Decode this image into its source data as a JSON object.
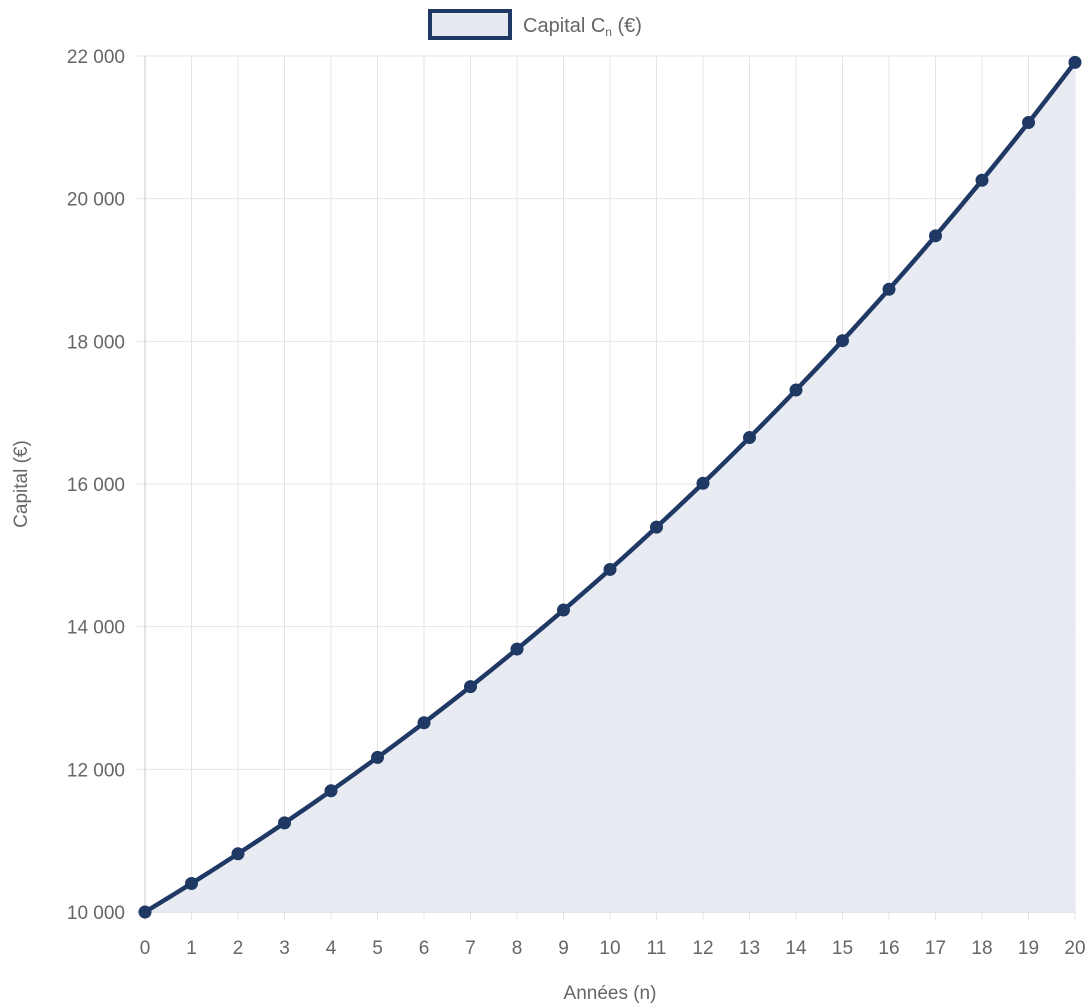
{
  "chart_data": {
    "type": "line",
    "legend_position": "top",
    "grid": true,
    "filled_area": true,
    "xlabel": "Années (n)",
    "ylabel": "Capital (€)",
    "x": [
      0,
      1,
      2,
      3,
      4,
      5,
      6,
      7,
      8,
      9,
      10,
      11,
      12,
      13,
      14,
      15,
      16,
      17,
      18,
      19,
      20
    ],
    "xlim": [
      0,
      20
    ],
    "ylim": [
      10000,
      22000
    ],
    "y_ticks": [
      10000,
      12000,
      14000,
      16000,
      18000,
      20000,
      22000
    ],
    "y_tick_labels": [
      "10 000",
      "12 000",
      "14 000",
      "16 000",
      "18 000",
      "20 000",
      "22 000"
    ],
    "series": [
      {
        "name": "Capital Cₙ (€)",
        "name_main": "Capital C",
        "name_sub": "n",
        "name_suffix": " (€)",
        "values": [
          10000,
          10400,
          10816,
          11249,
          11699,
          12167,
          12653,
          13159,
          13686,
          14233,
          14802,
          15395,
          16010,
          16651,
          17317,
          18009,
          18730,
          19479,
          20258,
          21068,
          21911
        ],
        "color": "#1f3864",
        "fill_color": "#e6e9ef"
      }
    ]
  }
}
